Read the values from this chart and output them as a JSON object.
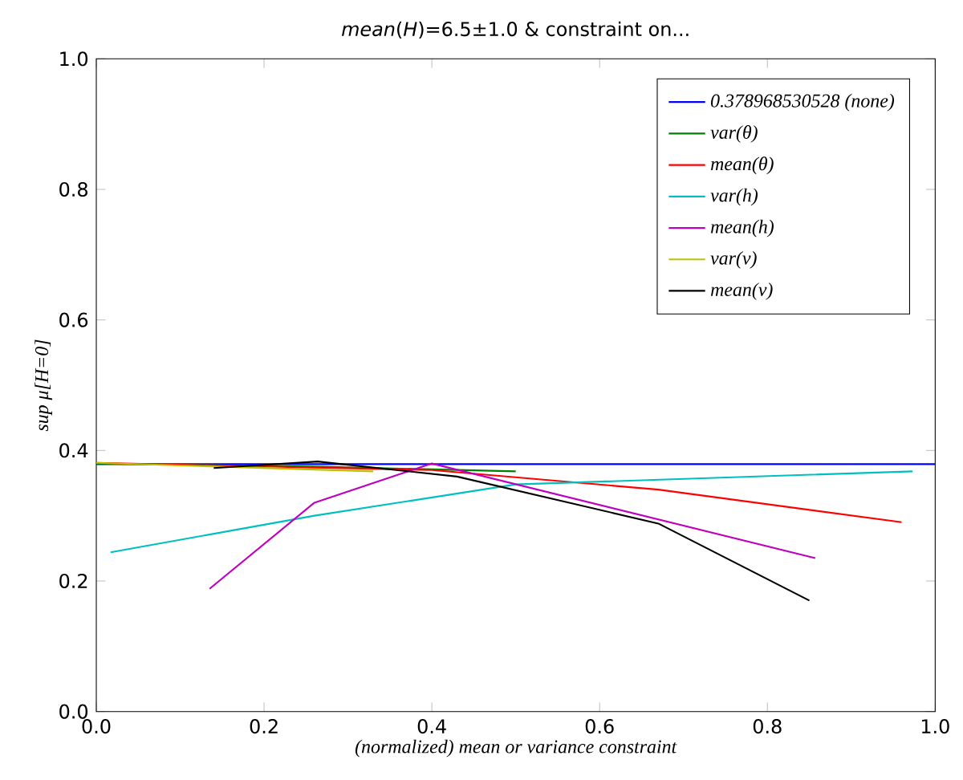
{
  "chart_data": {
    "type": "line",
    "title": "*mean*(*H*)=6.5±1.0 & constraint on...",
    "xlabel": "(normalized) mean or variance constraint",
    "ylabel": "sup μ[H=0]",
    "xlim": [
      0,
      1
    ],
    "ylim": [
      0,
      1
    ],
    "xticks": [
      {
        "value": 0,
        "label": "0.0"
      },
      0.2,
      0.4,
      0.6,
      0.8,
      {
        "value": 1,
        "label": "1.0"
      }
    ],
    "yticks": [
      {
        "value": 0,
        "label": "0.0"
      },
      0.2,
      0.4,
      0.6,
      0.8,
      {
        "value": 1,
        "label": "1.0"
      }
    ],
    "legend": "top right",
    "grid": false,
    "marker": "none",
    "line_style": "solid",
    "series": [
      {
        "name": "0.378968530528 (*none*)",
        "color": "#0000ff",
        "x": [
          0,
          1
        ],
        "values": [
          0.379,
          0.379
        ]
      },
      {
        "name": "var(θ)",
        "color": "#008000",
        "x": [
          0,
          0.27,
          0.5
        ],
        "values": [
          0.38,
          0.375,
          0.368
        ]
      },
      {
        "name": "mean(θ)",
        "color": "#ff0000",
        "x": [
          0,
          0.4,
          0.67,
          0.96
        ],
        "values": [
          0.381,
          0.37,
          0.34,
          0.29
        ]
      },
      {
        "name": "var(h)",
        "color": "#00bfbf",
        "x": [
          0.017,
          0.26,
          0.5,
          0.973
        ],
        "values": [
          0.244,
          0.3,
          0.348,
          0.368
        ]
      },
      {
        "name": "mean(h)",
        "color": "#bf00bf",
        "x": [
          0.135,
          0.26,
          0.4,
          0.857
        ],
        "values": [
          0.188,
          0.32,
          0.38,
          0.235
        ]
      },
      {
        "name": "var(v)",
        "color": "#bfbf00",
        "x": [
          0,
          0.33
        ],
        "values": [
          0.381,
          0.368
        ]
      },
      {
        "name": "mean(v)",
        "color": "#000000",
        "x": [
          0.14,
          0.264,
          0.43,
          0.67,
          0.85
        ],
        "values": [
          0.373,
          0.383,
          0.36,
          0.288,
          0.17
        ]
      }
    ]
  }
}
